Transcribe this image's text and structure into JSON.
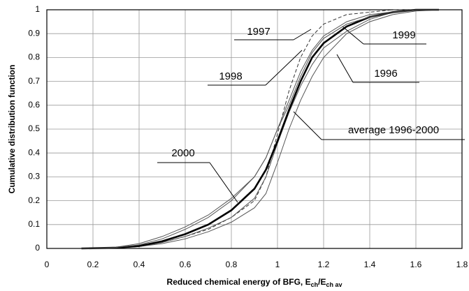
{
  "chart_data": {
    "type": "line",
    "ylabel": "Cumulative distribution function",
    "xlabel": [
      "Reduced chemical energy of BFG, E",
      "ch",
      "/E",
      "ch av"
    ],
    "x": [
      0.15,
      0.3,
      0.4,
      0.5,
      0.6,
      0.7,
      0.8,
      0.9,
      0.95,
      1.0,
      1.05,
      1.1,
      1.15,
      1.2,
      1.3,
      1.4,
      1.5,
      1.6,
      1.7
    ],
    "series": [
      {
        "name": "1997",
        "color": "#333333",
        "values": [
          0,
          0.003,
          0.01,
          0.025,
          0.05,
          0.08,
          0.13,
          0.2,
          0.3,
          0.48,
          0.66,
          0.8,
          0.89,
          0.94,
          0.98,
          0.99,
          1,
          1,
          1
        ]
      },
      {
        "name": "1999",
        "color": "#555555",
        "values": [
          0,
          0.002,
          0.008,
          0.025,
          0.05,
          0.085,
          0.13,
          0.21,
          0.3,
          0.44,
          0.57,
          0.68,
          0.77,
          0.84,
          0.91,
          0.96,
          0.99,
          1,
          1
        ]
      },
      {
        "name": "1998",
        "color": "#555555",
        "values": [
          0,
          0.005,
          0.02,
          0.05,
          0.09,
          0.14,
          0.21,
          0.3,
          0.38,
          0.5,
          0.62,
          0.74,
          0.83,
          0.89,
          0.95,
          0.98,
          0.99,
          1,
          1
        ]
      },
      {
        "name": "1996",
        "color": "#555555",
        "values": [
          0,
          0.002,
          0.008,
          0.02,
          0.04,
          0.07,
          0.11,
          0.17,
          0.23,
          0.36,
          0.5,
          0.62,
          0.72,
          0.8,
          0.9,
          0.95,
          0.98,
          0.995,
          1
        ]
      },
      {
        "name": "average 1996-2000",
        "color": "#000000",
        "values": [
          0,
          0.003,
          0.01,
          0.03,
          0.06,
          0.1,
          0.16,
          0.25,
          0.33,
          0.45,
          0.58,
          0.7,
          0.8,
          0.86,
          0.93,
          0.97,
          0.99,
          1,
          1
        ]
      },
      {
        "name": "2000",
        "color": "#555555",
        "values": [
          0,
          0.004,
          0.015,
          0.04,
          0.08,
          0.13,
          0.2,
          0.3,
          0.38,
          0.5,
          0.6,
          0.72,
          0.82,
          0.88,
          0.94,
          0.97,
          0.99,
          1,
          1
        ]
      }
    ],
    "xlim": [
      0,
      1.8
    ],
    "ylim": [
      0,
      1
    ],
    "xticks": [
      0,
      0.2,
      0.4,
      0.6,
      0.8,
      1,
      1.2,
      1.4,
      1.6,
      1.8
    ],
    "yticks": [
      0,
      0.1,
      0.2,
      0.3,
      0.4,
      0.5,
      0.6,
      0.7,
      0.8,
      0.9,
      1
    ],
    "grid": true
  }
}
